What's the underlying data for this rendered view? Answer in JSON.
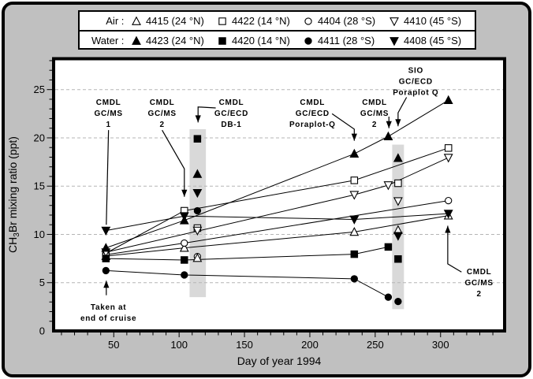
{
  "figure": {
    "bg": "#c0c0c0",
    "plot_bg": "#ffffff",
    "frame_color": "#000000",
    "grid_color": "#b5b5b5",
    "band_color": "#d9d9d9"
  },
  "legend": {
    "rows": [
      {
        "label": "Air : ",
        "entries": [
          {
            "marker": "triangle-up",
            "filled": false,
            "text": "4415 (24 °N)"
          },
          {
            "marker": "square",
            "filled": false,
            "text": "4422 (14 °N)"
          },
          {
            "marker": "circle",
            "filled": false,
            "text": "4404 (28 °S)"
          },
          {
            "marker": "triangle-down",
            "filled": false,
            "text": "4410 (45 °S)"
          }
        ]
      },
      {
        "label": "Water : ",
        "entries": [
          {
            "marker": "triangle-up",
            "filled": true,
            "text": "4423 (24 °N)"
          },
          {
            "marker": "square",
            "filled": true,
            "text": "4420 (14 °N)"
          },
          {
            "marker": "circle",
            "filled": true,
            "text": "4411 (28 °S)"
          },
          {
            "marker": "triangle-down",
            "filled": true,
            "text": "4408 (45 °S)"
          }
        ]
      }
    ]
  },
  "chart_data": {
    "type": "line-scatter",
    "title": "",
    "xlabel": "Day of year 1994",
    "ylabel": "CH3Br mixing ratio (ppt)",
    "ylabel_parts": [
      "CH",
      "3",
      "Br mixing ratio (ppt)"
    ],
    "xlim": [
      4,
      349
    ],
    "ylim": [
      0,
      28.2
    ],
    "xticks": [
      50,
      100,
      150,
      200,
      250,
      300
    ],
    "xminor_step": 10,
    "yticks": [
      0,
      5,
      10,
      15,
      20,
      25
    ],
    "yminor_step": 1,
    "gridlines_y": [
      5,
      10,
      15,
      20,
      25
    ],
    "grid": true,
    "legend_position": "top-outside",
    "series": [
      {
        "id": "air-4415",
        "name": "Air 4415 (24 °N)",
        "marker": "triangle-up",
        "filled": false,
        "points": [
          [
            44,
            7.75
          ],
          [
            104,
            8.6
          ],
          [
            234,
            10.25
          ],
          [
            306,
            11.95
          ]
        ]
      },
      {
        "id": "air-4422",
        "name": "Air 4422 (14 °N)",
        "marker": "square",
        "filled": false,
        "points": [
          [
            44,
            8.05
          ],
          [
            104,
            12.45
          ],
          [
            234,
            15.6
          ],
          [
            306,
            18.95
          ]
        ]
      },
      {
        "id": "air-4404",
        "name": "Air 4404 (28 °S)",
        "marker": "circle",
        "filled": false,
        "points": [
          [
            44,
            7.9
          ],
          [
            104,
            9.1
          ],
          [
            306,
            13.5
          ]
        ]
      },
      {
        "id": "air-4410",
        "name": "Air 4410 (45 °S)",
        "marker": "triangle-down",
        "filled": false,
        "points": [
          [
            44,
            8.15
          ],
          [
            234,
            14.1
          ],
          [
            260,
            15.1
          ],
          [
            306,
            17.95
          ]
        ]
      },
      {
        "id": "water-4423",
        "name": "Water 4423 (24 °N)",
        "marker": "triangle-up",
        "filled": true,
        "points": [
          [
            44,
            8.6
          ],
          [
            104,
            11.45
          ],
          [
            234,
            18.35
          ],
          [
            260,
            20.15
          ],
          [
            306,
            23.9
          ]
        ]
      },
      {
        "id": "water-4420",
        "name": "Water 4420 (14 °N)",
        "marker": "square",
        "filled": true,
        "points": [
          [
            44,
            7.5
          ],
          [
            104,
            7.35
          ],
          [
            234,
            7.95
          ],
          [
            260,
            8.7
          ]
        ]
      },
      {
        "id": "water-4411",
        "name": "Water 4411 (28 °S)",
        "marker": "circle",
        "filled": true,
        "points": [
          [
            44,
            6.25
          ],
          [
            104,
            5.8
          ],
          [
            234,
            5.4
          ],
          [
            260,
            3.5
          ]
        ]
      },
      {
        "id": "water-4408",
        "name": "Water 4408 (45 °S)",
        "marker": "triangle-down",
        "filled": true,
        "points": [
          [
            44,
            10.4
          ],
          [
            104,
            11.9
          ],
          [
            234,
            11.55
          ],
          [
            306,
            12.15
          ]
        ]
      }
    ],
    "extra_groups": [
      {
        "id": "band-cmdl-gcecd-db1",
        "label": "CMDL GC/ECD DB-1",
        "band": {
          "x0": 108,
          "x1": 120.5,
          "y0": 3.5,
          "y1": 20.9
        },
        "points": [
          {
            "marker": "square",
            "filled": true,
            "x": 114,
            "y": 19.9
          },
          {
            "marker": "triangle-up",
            "filled": true,
            "x": 114,
            "y": 16.25
          },
          {
            "marker": "triangle-down",
            "filled": true,
            "x": 114,
            "y": 14.3
          },
          {
            "marker": "circle",
            "filled": true,
            "x": 114,
            "y": 12.45
          },
          {
            "marker": "square",
            "filled": false,
            "x": 114,
            "y": 10.65
          },
          {
            "marker": "triangle-down",
            "filled": false,
            "x": 114,
            "y": 10.4
          },
          {
            "marker": "circle",
            "filled": false,
            "x": 114,
            "y": 7.7
          },
          {
            "marker": "triangle-up",
            "filled": false,
            "x": 114,
            "y": 7.55
          }
        ]
      },
      {
        "id": "band-sio-poraplot",
        "label": "SIO GC/ECD Poraplot Q",
        "band": {
          "x0": 263,
          "x1": 272,
          "y0": 2.26,
          "y1": 19.3
        },
        "points": [
          {
            "marker": "triangle-up",
            "filled": true,
            "x": 267.5,
            "y": 17.9
          },
          {
            "marker": "square",
            "filled": false,
            "x": 267.5,
            "y": 15.3
          },
          {
            "marker": "triangle-down",
            "filled": false,
            "x": 267.5,
            "y": 13.45
          },
          {
            "marker": "triangle-up",
            "filled": false,
            "x": 267.5,
            "y": 10.45
          },
          {
            "marker": "triangle-down",
            "filled": true,
            "x": 267.5,
            "y": 9.85
          },
          {
            "marker": "square",
            "filled": true,
            "x": 267.5,
            "y": 7.45
          },
          {
            "marker": "circle",
            "filled": true,
            "x": 267.5,
            "y": 3.05
          }
        ]
      }
    ],
    "annotations": [
      {
        "id": "cmdl-gcms-1",
        "lines": [
          "CMDL",
          "GC/MS",
          "1"
        ],
        "tx": 46,
        "ty": 23.7,
        "leader": [
          [
            46,
            20.8
          ],
          [
            44.3,
            11.0
          ]
        ],
        "arrow": false
      },
      {
        "id": "cmdl-gcms-2-left",
        "lines": [
          "CMDL",
          "GC/MS",
          "2"
        ],
        "tx": 87,
        "ty": 23.7,
        "leader": [
          [
            87,
            20.8
          ],
          [
            104,
            16.8
          ],
          [
            104,
            13.9
          ]
        ],
        "arrow": true
      },
      {
        "id": "cmdl-gcecd-db1",
        "lines": [
          "CMDL",
          "GC/ECD",
          "DB-1"
        ],
        "tx": 140,
        "ty": 23.7,
        "leader": [
          [
            128,
            23.1
          ],
          [
            114.5,
            23.2
          ],
          [
            114.5,
            21.6
          ]
        ],
        "arrow": true
      },
      {
        "id": "cmdl-gcecd-poraplot",
        "lines": [
          "CMDL",
          "GC/ECD",
          "Poraplot-Q"
        ],
        "tx": 202,
        "ty": 23.7,
        "leader": [
          [
            217,
            22.5
          ],
          [
            234,
            20.9
          ],
          [
            234,
            19.7
          ]
        ],
        "arrow": true
      },
      {
        "id": "cmdl-gcms-2-mid",
        "lines": [
          "CMDL",
          "GC/MS",
          "2"
        ],
        "tx": 249.5,
        "ty": 23.7,
        "leader": [
          [
            260.5,
            22.2
          ],
          [
            260.5,
            21.0
          ]
        ],
        "arrow": true
      },
      {
        "id": "sio-gcecd-poraplot",
        "lines": [
          "SIO",
          "GC/ECD",
          "Poraplot Q"
        ],
        "tx": 281,
        "ty": 27.0,
        "leader": [
          [
            274,
            24.2
          ],
          [
            267.5,
            22.6
          ],
          [
            267.5,
            21.2
          ]
        ],
        "arrow": true
      },
      {
        "id": "cmdl-gcms-2-right",
        "lines": [
          "CMDL",
          "GC/MS",
          "2"
        ],
        "tx": 329.5,
        "ty": 6.15,
        "leader": [
          [
            316,
            6.1
          ],
          [
            305.5,
            6.95
          ],
          [
            305.5,
            10.9
          ]
        ],
        "arrow": true
      },
      {
        "id": "taken-at-end-of-cruise",
        "lines": [
          "Taken at",
          "end of cruise"
        ],
        "tx": 46,
        "ty": 2.5,
        "leader": [
          [
            44.3,
            3.7
          ],
          [
            44.3,
            5.2
          ]
        ],
        "arrow": true
      }
    ]
  }
}
